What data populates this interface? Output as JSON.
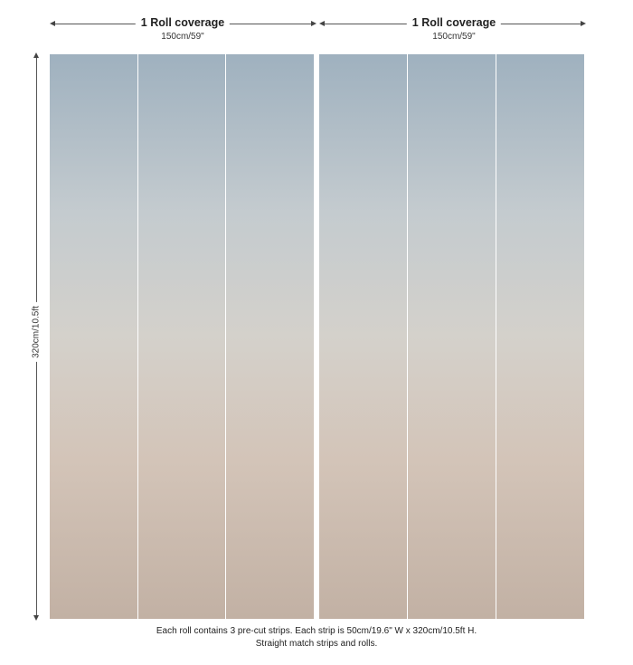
{
  "rolls": [
    {
      "title": "1 Roll coverage",
      "width": "150cm/59\"",
      "strips": 3
    },
    {
      "title": "1 Roll coverage",
      "width": "150cm/59\"",
      "strips": 3
    }
  ],
  "height_label": "320cm/10.5ft",
  "caption": {
    "line1": "Each roll contains 3 pre-cut strips.  Each strip is 50cm/19.6\" W x 320cm/10.5ft H.",
    "line2": "Straight match strips and rolls."
  },
  "colors": {
    "top": "#9fb1bf",
    "middle": "#d4d1cb",
    "bottom": "#c2b1a4"
  }
}
